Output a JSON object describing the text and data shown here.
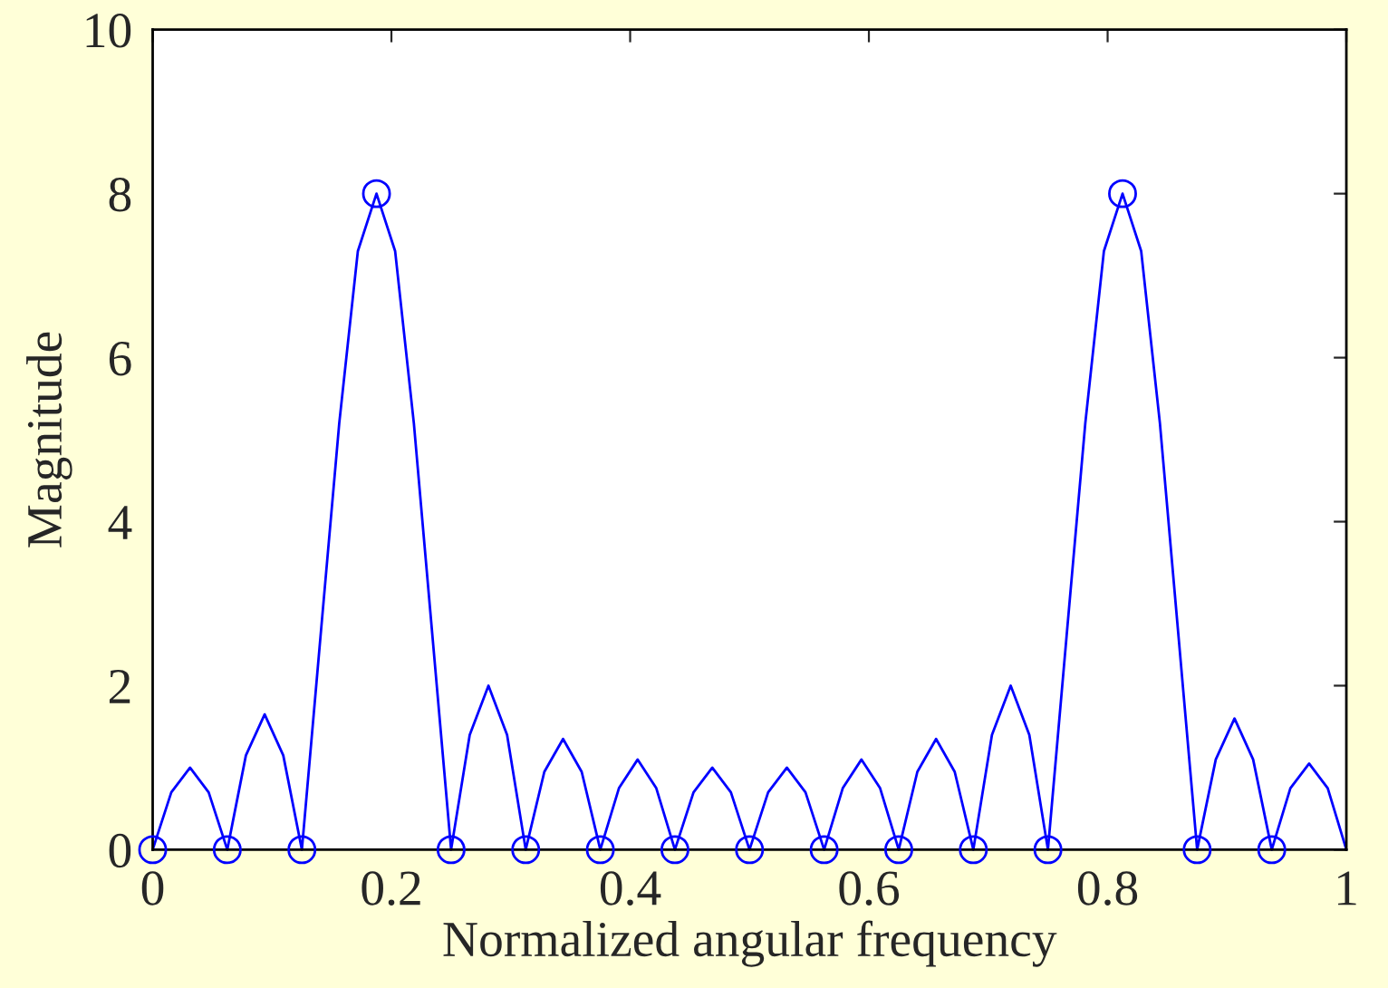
{
  "chart_data": {
    "type": "line",
    "xlabel": "Normalized angular frequency",
    "ylabel": "Magnitude",
    "xlim": [
      0,
      1
    ],
    "ylim": [
      0,
      10
    ],
    "xticks": [
      0,
      0.2,
      0.4,
      0.6,
      0.8,
      1
    ],
    "yticks": [
      0,
      2,
      4,
      6,
      8,
      10
    ],
    "grid": false,
    "legend": false,
    "series": [
      {
        "color": "#0000ff",
        "marker": "none",
        "line_style": "solid",
        "x": [
          0,
          0.0156,
          0.0313,
          0.0469,
          0.0625,
          0.0781,
          0.0938,
          0.1094,
          0.125,
          0.1406,
          0.1563,
          0.1719,
          0.1875,
          0.2031,
          0.2188,
          0.2344,
          0.25,
          0.2656,
          0.2813,
          0.2969,
          0.3125,
          0.3281,
          0.3438,
          0.3594,
          0.375,
          0.3906,
          0.4063,
          0.4219,
          0.4375,
          0.4531,
          0.4688,
          0.4844,
          0.5,
          0.5156,
          0.5313,
          0.5469,
          0.5625,
          0.5781,
          0.5938,
          0.6094,
          0.625,
          0.6406,
          0.6563,
          0.6719,
          0.6875,
          0.7031,
          0.7188,
          0.7344,
          0.75,
          0.7656,
          0.7813,
          0.7969,
          0.8125,
          0.8281,
          0.8438,
          0.8594,
          0.875,
          0.8906,
          0.9063,
          0.9219,
          0.9375,
          0.9531,
          0.9688,
          0.9844,
          1.0
        ],
        "values": [
          0,
          0.7,
          1.0,
          0.7,
          0,
          1.15,
          1.65,
          1.15,
          0,
          2.6,
          5.2,
          7.3,
          8,
          7.3,
          5.2,
          2.6,
          0,
          1.4,
          2.0,
          1.4,
          0,
          0.95,
          1.35,
          0.95,
          0,
          0.75,
          1.1,
          0.75,
          0,
          0.7,
          1.0,
          0.7,
          0,
          0.7,
          1.0,
          0.7,
          0,
          0.75,
          1.1,
          0.75,
          0,
          0.95,
          1.35,
          0.95,
          0,
          1.4,
          2.0,
          1.4,
          0,
          2.6,
          5.2,
          7.3,
          8,
          7.3,
          5.2,
          2.6,
          0,
          1.1,
          1.6,
          1.1,
          0,
          0.75,
          1.05,
          0.75,
          0
        ]
      },
      {
        "type": "scatter",
        "color": "#0000ff",
        "marker": "circle",
        "x": [
          0,
          0.0625,
          0.125,
          0.1875,
          0.25,
          0.3125,
          0.375,
          0.4375,
          0.5,
          0.5625,
          0.625,
          0.6875,
          0.75,
          0.8125,
          0.875,
          0.9375
        ],
        "values": [
          0,
          0,
          0,
          8,
          0,
          0,
          0,
          0,
          0,
          0,
          0,
          0,
          0,
          8,
          0,
          0
        ]
      }
    ]
  }
}
